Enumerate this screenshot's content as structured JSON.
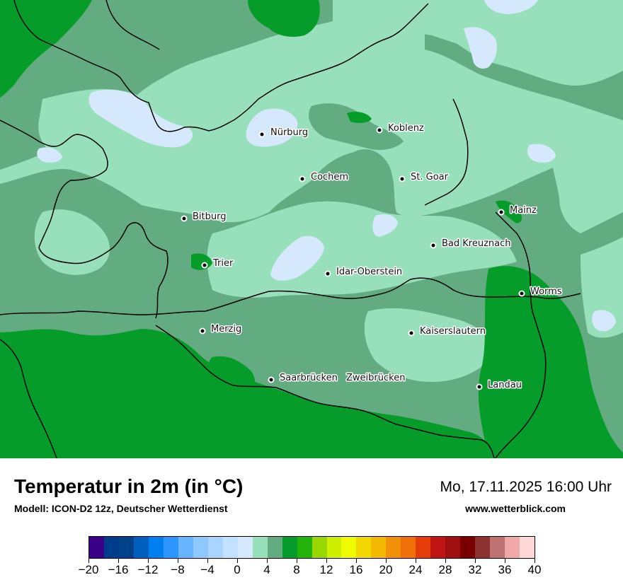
{
  "title": "Temperatur in 2m (in °C)",
  "model": "Modell: ICON-D2 12z, Deutscher Wetterdienst",
  "datetime": "Mo, 17.11.2025 16:00 Uhr",
  "website": "www.wetterblick.com",
  "colors": {
    "band_0_2": "#d6e8fc",
    "band_2_4": "#98e0bc",
    "band_4_6": "#63ab80",
    "band_6_8": "#069c29",
    "border": "#000000"
  },
  "cities": [
    {
      "name": "Nürburg"
    },
    {
      "name": "Koblenz"
    },
    {
      "name": "Cochem"
    },
    {
      "name": "St. Goar"
    },
    {
      "name": "Mainz"
    },
    {
      "name": "Bitburg"
    },
    {
      "name": "Bad Kreuznach"
    },
    {
      "name": "Trier"
    },
    {
      "name": "Idar-Oberstein"
    },
    {
      "name": "Worms"
    },
    {
      "name": "Merzig"
    },
    {
      "name": "Kaiserslautern"
    },
    {
      "name": "Saarbrücken"
    },
    {
      "name": "Zweibrücken"
    },
    {
      "name": "Landau"
    }
  ],
  "legend": {
    "min": -20,
    "max": 40,
    "step": 2,
    "tick_labels": [
      "−20",
      "−16",
      "−12",
      "−8",
      "−4",
      "0",
      "4",
      "8",
      "12",
      "16",
      "20",
      "24",
      "28",
      "32",
      "36",
      "40"
    ],
    "colors": [
      "#3a0088",
      "#003c8c",
      "#00428a",
      "#0060c0",
      "#0080f0",
      "#2c96ff",
      "#66b6ff",
      "#8ec8ff",
      "#a8d4ff",
      "#c2e0ff",
      "#d6e8fc",
      "#98e0bc",
      "#63ab80",
      "#069c29",
      "#22b40a",
      "#9ad700",
      "#cef000",
      "#f0fa00",
      "#f2d700",
      "#f2b900",
      "#f2900a",
      "#f0700a",
      "#e63c0a",
      "#be1414",
      "#a01010",
      "#7a0000",
      "#8c3232",
      "#c07272",
      "#f0a8a8",
      "#ffd8d8"
    ]
  }
}
